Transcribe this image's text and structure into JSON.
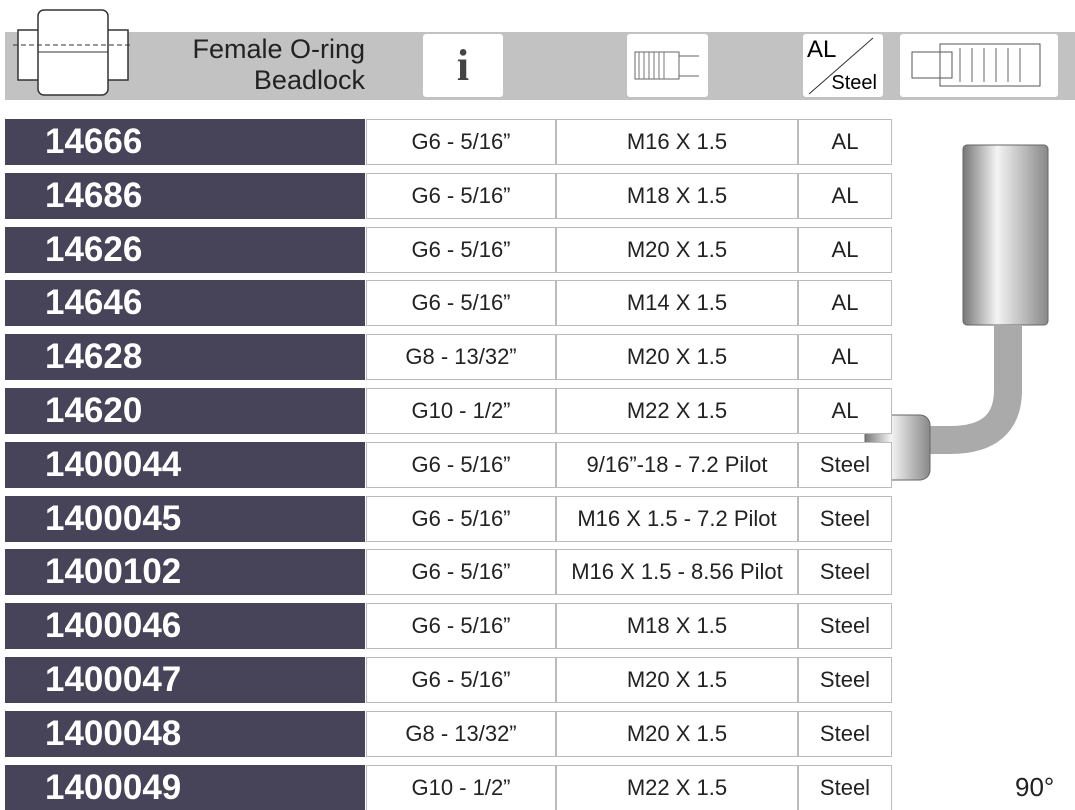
{
  "header": {
    "title_line1": "Female O-ring",
    "title_line2": "Beadlock",
    "icons": [
      "fitting-icon",
      "info-icon",
      "thread-icon",
      "material-icon",
      "hose-fitting-icon"
    ],
    "material_top": "AL",
    "material_bottom": "Steel"
  },
  "rows": [
    {
      "part": "14666",
      "hose": "G6 - 5/16”",
      "thread": "M16 X 1.5",
      "material": "AL"
    },
    {
      "part": "14686",
      "hose": "G6 - 5/16”",
      "thread": "M18 X 1.5",
      "material": "AL"
    },
    {
      "part": "14626",
      "hose": "G6 - 5/16”",
      "thread": "M20 X 1.5",
      "material": "AL"
    },
    {
      "part": "14646",
      "hose": "G6 - 5/16”",
      "thread": "M14 X 1.5",
      "material": "AL"
    },
    {
      "part": "14628",
      "hose": "G8 - 13/32”",
      "thread": "M20 X 1.5",
      "material": "AL"
    },
    {
      "part": "14620",
      "hose": "G10 - 1/2”",
      "thread": "M22 X 1.5",
      "material": "AL"
    },
    {
      "part": "1400044",
      "hose": "G6 - 5/16”",
      "thread": "9/16”-18 - 7.2 Pilot",
      "material": "Steel"
    },
    {
      "part": "1400045",
      "hose": "G6 - 5/16”",
      "thread": "M16 X 1.5 - 7.2 Pilot",
      "material": "Steel"
    },
    {
      "part": "1400102",
      "hose": "G6 - 5/16”",
      "thread": "M16 X 1.5 - 8.56 Pilot",
      "material": "Steel"
    },
    {
      "part": "1400046",
      "hose": "G6 - 5/16”",
      "thread": "M18 X 1.5",
      "material": "Steel"
    },
    {
      "part": "1400047",
      "hose": "G6 - 5/16”",
      "thread": "M20 X 1.5",
      "material": "Steel"
    },
    {
      "part": "1400048",
      "hose": "G8 - 13/32”",
      "thread": "M20 X 1.5",
      "material": "Steel"
    },
    {
      "part": "1400049",
      "hose": "G10 - 1/2”",
      "thread": "M22 X 1.5",
      "material": "Steel"
    }
  ],
  "angle": "90°",
  "colors": {
    "part_cell": "#474358",
    "header_band": "#c2c2c2"
  }
}
